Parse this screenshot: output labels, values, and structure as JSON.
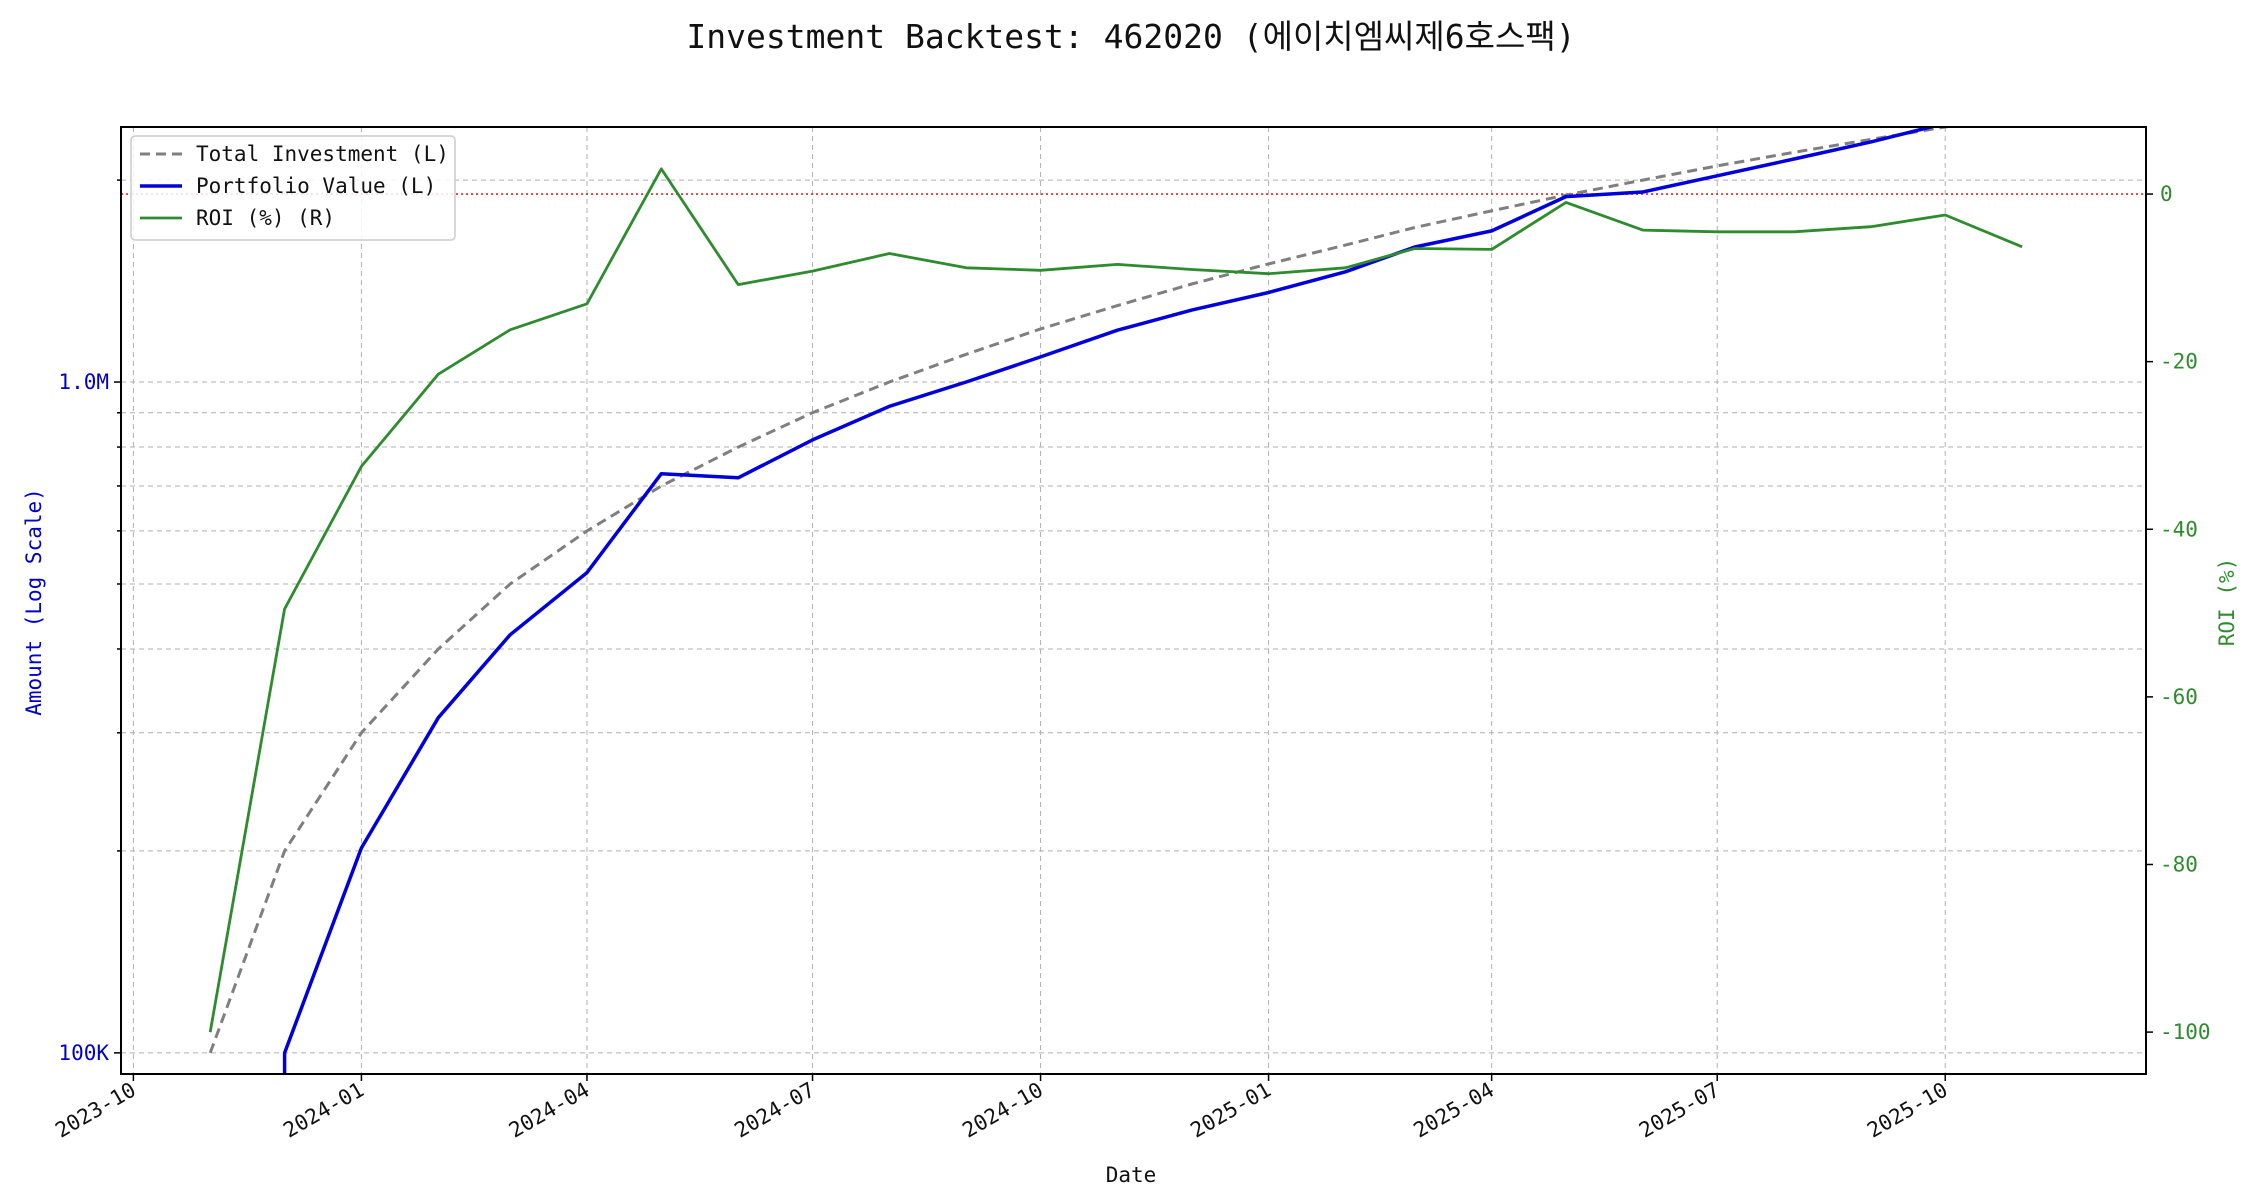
{
  "chart_data": {
    "type": "line",
    "title": "Investment Backtest: 462020 (에이치엠씨제6호스팩)",
    "xlabel": "Date",
    "ylabel_left": "Amount (Log Scale)",
    "ylabel_right": "ROI (%)",
    "left_axis_scale": "log",
    "xlim": [
      "2023-09-26",
      "2025-12-21"
    ],
    "ylim_left": [
      93000,
      2400000
    ],
    "ylim_right": [
      -105,
      8
    ],
    "x_ticks": [
      "2023-10",
      "2024-01",
      "2024-04",
      "2024-07",
      "2024-10",
      "2025-01",
      "2025-04",
      "2025-07",
      "2025-10"
    ],
    "x_tick_dates": [
      "2023-10-01",
      "2024-01-01",
      "2024-04-01",
      "2024-07-01",
      "2024-10-01",
      "2025-01-01",
      "2025-04-01",
      "2025-07-01",
      "2025-10-01"
    ],
    "y_left_ticks": [
      {
        "value": 100000,
        "label": "100K"
      },
      {
        "value": 1000000,
        "label": "1.0M"
      }
    ],
    "y_right_ticks": [
      0,
      -20,
      -40,
      -60,
      -80,
      -100
    ],
    "reference_line": {
      "axis": "right",
      "value": 0,
      "color": "#d62728",
      "style": "dotted"
    },
    "grid": true,
    "legend_position": "top-left",
    "x": [
      "2023-11-01",
      "2023-12-01",
      "2024-01-01",
      "2024-02-01",
      "2024-03-01",
      "2024-04-01",
      "2024-05-01",
      "2024-06-01",
      "2024-07-01",
      "2024-08-01",
      "2024-09-01",
      "2024-10-01",
      "2024-11-01",
      "2024-12-01",
      "2025-01-01",
      "2025-02-01",
      "2025-03-01",
      "2025-04-01",
      "2025-05-01",
      "2025-06-01",
      "2025-07-01",
      "2025-08-01",
      "2025-09-01",
      "2025-10-01",
      "2025-11-01"
    ],
    "series": [
      {
        "name": "Total Investment (L)",
        "axis": "left",
        "color": "#7f7f7f",
        "dash": "10,6",
        "width": 3,
        "values": [
          100000,
          200000,
          300000,
          400000,
          500000,
          600000,
          700000,
          800000,
          900000,
          1000000,
          1100000,
          1200000,
          1300000,
          1400000,
          1500000,
          1600000,
          1700000,
          1800000,
          1900000,
          2000000,
          2100000,
          2200000,
          2300000,
          2400000,
          2500000
        ]
      },
      {
        "name": "Portfolio Value (L)",
        "axis": "left",
        "color": "#0000dd",
        "dash": "",
        "width": 3.5,
        "values": [
          null,
          100000,
          202000,
          316000,
          420000,
          520000,
          730000,
          720000,
          820000,
          920000,
          1000000,
          1090000,
          1195000,
          1280000,
          1360000,
          1460000,
          1590000,
          1680000,
          1890000,
          1920000,
          2030000,
          2150000,
          2280000,
          2430000,
          2440000
        ]
      },
      {
        "name": "ROI (%) (R)",
        "axis": "right",
        "color": "#2e8b2e",
        "dash": "",
        "width": 2.8,
        "values": [
          -100,
          -49.5,
          -32.5,
          -21.5,
          -16.2,
          -13.1,
          3.0,
          -10.8,
          -9.2,
          -7.1,
          -8.8,
          -9.1,
          -8.4,
          -9.0,
          -9.5,
          -8.8,
          -6.5,
          -6.6,
          -1.0,
          -4.3,
          -4.5,
          -4.5,
          -3.9,
          -2.5,
          -6.3
        ]
      }
    ]
  }
}
